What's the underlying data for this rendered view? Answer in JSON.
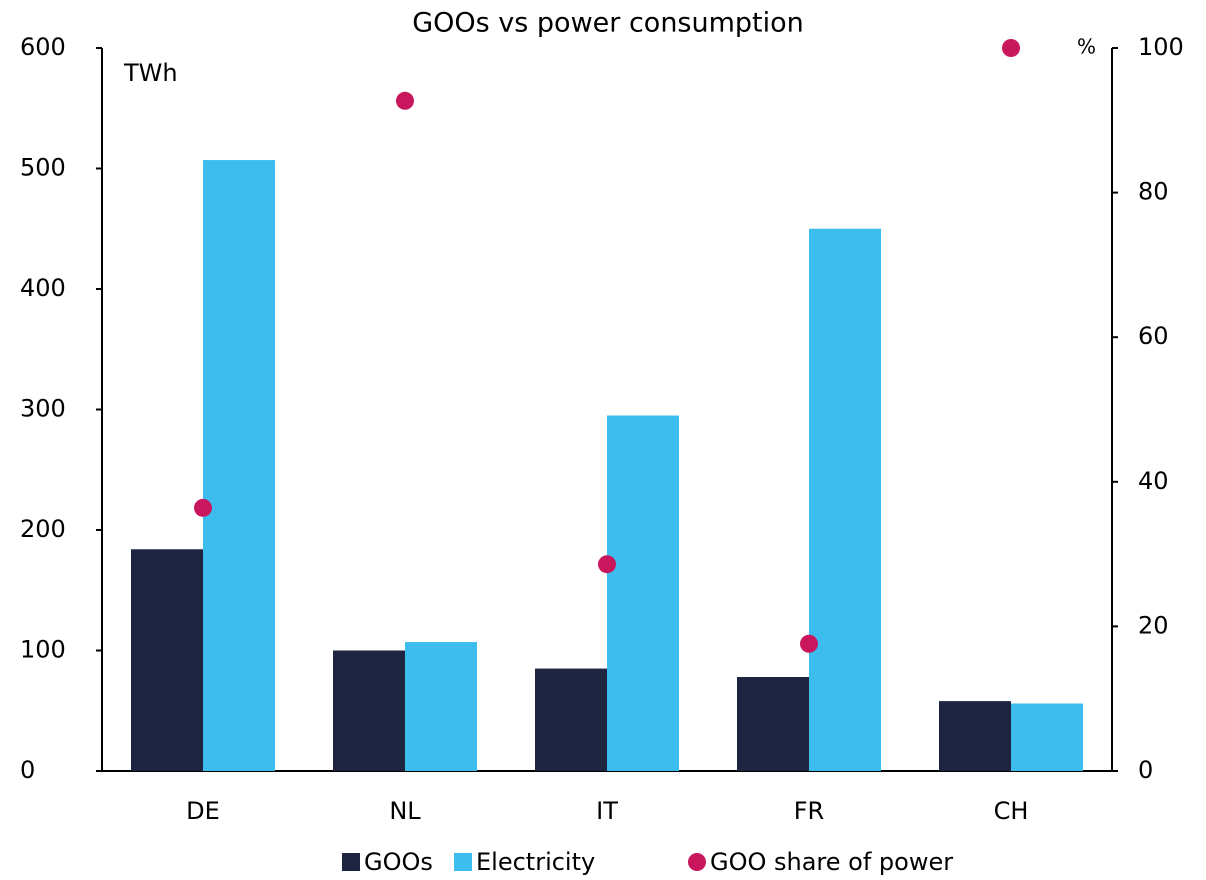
{
  "chart_data": {
    "type": "bar",
    "title": "GOOs vs power consumption",
    "y_label": "TWh",
    "y2_label": "%",
    "categories": [
      "DE",
      "NL",
      "IT",
      "FR",
      "CH"
    ],
    "series": [
      {
        "name": "GOOs",
        "color": "#1e2541",
        "values": [
          184,
          100,
          85,
          78,
          58
        ]
      },
      {
        "name": "Electricity",
        "color": "#3dbdee",
        "values": [
          507,
          107,
          295,
          450,
          56
        ]
      },
      {
        "name": "GOO share of power",
        "type": "scatter",
        "axis": "y2",
        "color": "#c8175d",
        "values": [
          36.4,
          92.7,
          28.6,
          17.6,
          100
        ]
      }
    ],
    "ylim": [
      0,
      600
    ],
    "yticks": [
      0,
      100,
      200,
      300,
      400,
      500,
      600
    ],
    "y2lim": [
      0,
      100
    ],
    "y2ticks": [
      0,
      20,
      40,
      60,
      80,
      100
    ],
    "grid": false,
    "legend": "bottom"
  }
}
